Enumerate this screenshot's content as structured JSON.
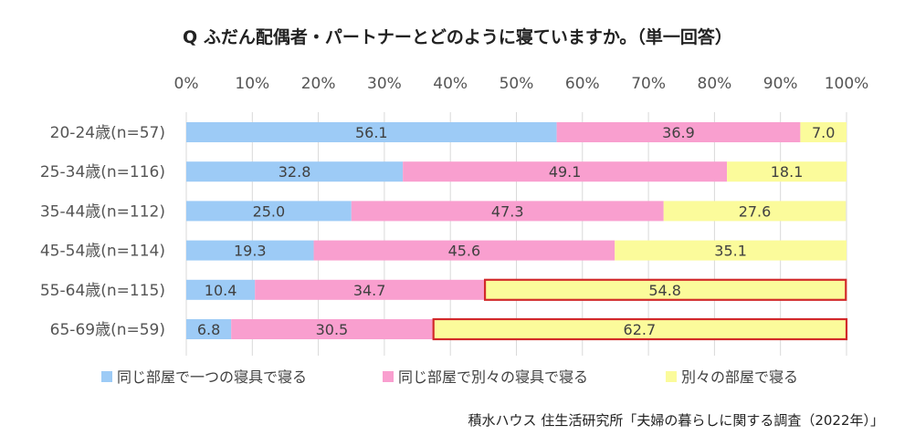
{
  "chart_data": {
    "type": "bar",
    "orientation": "horizontal",
    "stacked": true,
    "title": "Q ふだん配偶者・パートナーとどのように寝ていますか。（単一回答）",
    "xlim": [
      0,
      100
    ],
    "x_ticks": [
      "0%",
      "10%",
      "20%",
      "30%",
      "40%",
      "50%",
      "60%",
      "70%",
      "80%",
      "90%",
      "100%"
    ],
    "grid": true,
    "legend_position": "bottom",
    "categories": [
      "20-24歳(n=57)",
      "25-34歳(n=116)",
      "35-44歳(n=112)",
      "45-54歳(n=114)",
      "55-64歳(n=115)",
      "65-69歳(n=59)"
    ],
    "series": [
      {
        "name": "同じ部屋で一つの寝具で寝る",
        "color": "#9dcbf6",
        "values": [
          56.1,
          32.8,
          25.0,
          19.3,
          10.4,
          6.8
        ],
        "labels": [
          "56.1",
          "32.8",
          "25.0",
          "19.3",
          "10.4",
          "6.8"
        ]
      },
      {
        "name": "同じ部屋で別々の寝具で寝る",
        "color": "#f99fcf",
        "values": [
          36.9,
          49.1,
          47.3,
          45.6,
          34.7,
          30.5
        ],
        "labels": [
          "36.9",
          "49.1",
          "47.3",
          "45.6",
          "34.7",
          "30.5"
        ]
      },
      {
        "name": "別々の部屋で寝る",
        "color": "#fbfb9b",
        "values": [
          7.0,
          18.1,
          27.6,
          35.1,
          54.8,
          62.7
        ],
        "labels": [
          "7.0",
          "18.1",
          "27.6",
          "35.1",
          "54.8",
          "62.7"
        ]
      }
    ],
    "highlighted": [
      {
        "series": 2,
        "category": 4
      },
      {
        "series": 2,
        "category": 5
      }
    ],
    "highlight_color": "#d22a2a",
    "source": "積水ハウス 住生活研究所「夫婦の暮らしに関する調査（2022年）」"
  }
}
